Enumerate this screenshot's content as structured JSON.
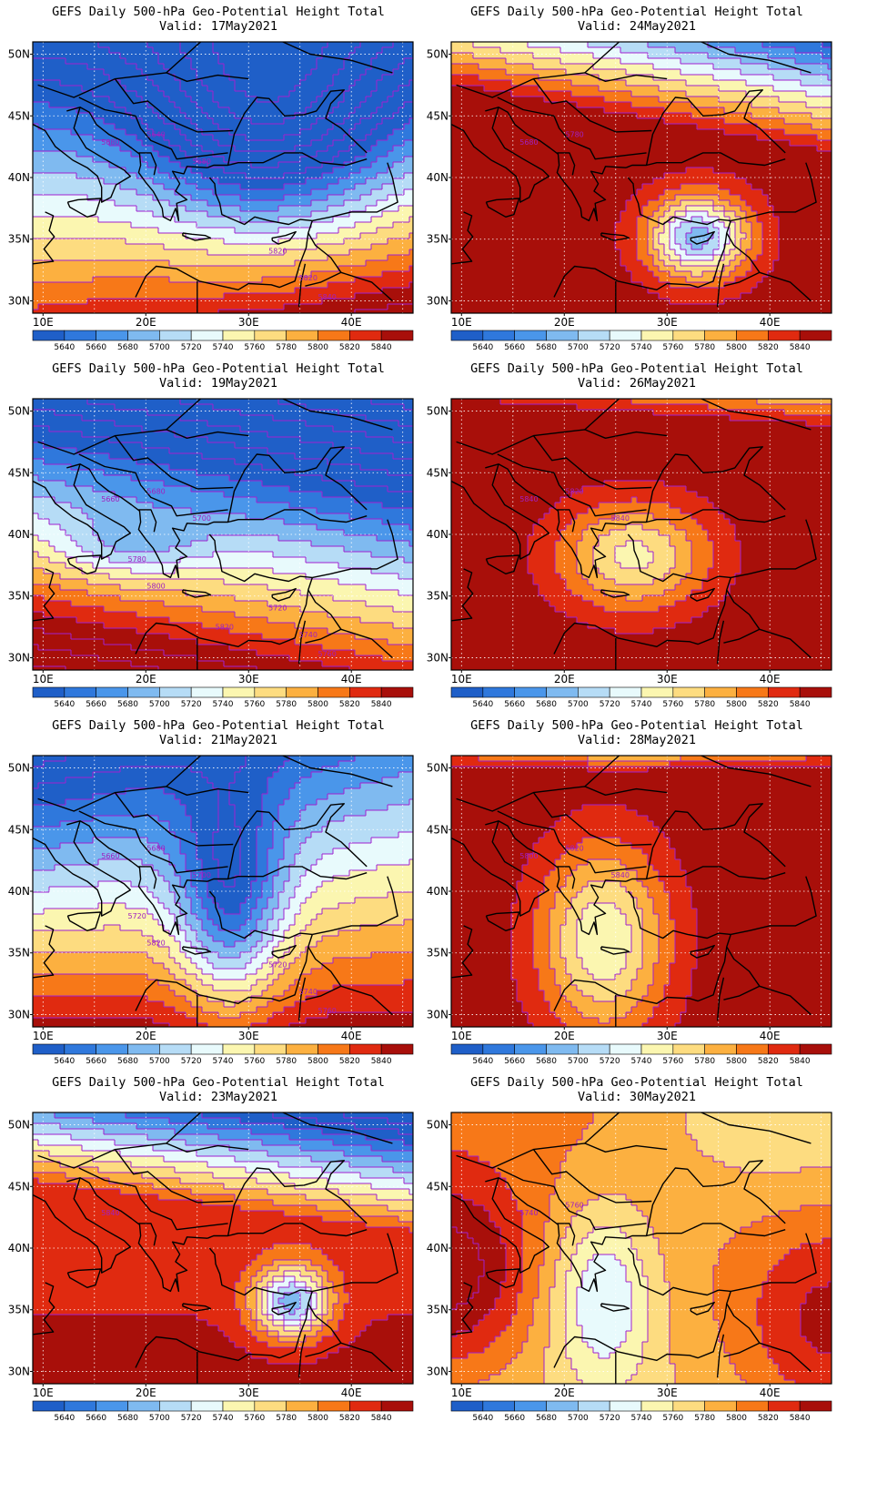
{
  "figure": {
    "title_line1": "GEFS Daily 500-hPa Geo-Potential Height Total",
    "x_ticks": [
      "10E",
      "20E",
      "30E",
      "40E"
    ],
    "y_ticks": [
      "50N",
      "45N",
      "40N",
      "35N",
      "30N"
    ],
    "colorbar": {
      "labels": [
        "5640",
        "5660",
        "5680",
        "5700",
        "5720",
        "5740",
        "5760",
        "5780",
        "5800",
        "5820",
        "5840"
      ],
      "colors": [
        "#1f5fc8",
        "#2f78dc",
        "#4a96ea",
        "#7fbaf0",
        "#b6dcf6",
        "#e8fafc",
        "#fbf6b0",
        "#fddc80",
        "#fcb040",
        "#f77818",
        "#e02a10",
        "#a80f0a"
      ]
    },
    "contour_color": "#a020d0",
    "panels": [
      {
        "valid": "Valid: 17May2021",
        "contour_labels": [
          "5680",
          "5640",
          "5680",
          "5820",
          "5820",
          "5840"
        ]
      },
      {
        "valid": "Valid: 24May2021",
        "contour_labels": [
          "5680",
          "5780"
        ]
      },
      {
        "valid": "Valid: 19May2021",
        "contour_labels": [
          "5660",
          "5680",
          "5700",
          "5720",
          "5740",
          "5760",
          "5780",
          "5800",
          "5820"
        ]
      },
      {
        "valid": "Valid: 26May2021",
        "contour_labels": [
          "5840",
          "5820",
          "5840"
        ]
      },
      {
        "valid": "Valid: 21May2021",
        "contour_labels": [
          "5660",
          "5680",
          "5700",
          "5720",
          "5740",
          "5760",
          "5720",
          "5820"
        ]
      },
      {
        "valid": "Valid: 28May2021",
        "contour_labels": [
          "5800",
          "5820",
          "5840"
        ]
      },
      {
        "valid": "Valid: 23May2021",
        "contour_labels": [
          "5840"
        ]
      },
      {
        "valid": "Valid: 30May2021",
        "contour_labels": [
          "5740",
          "5760"
        ]
      }
    ]
  }
}
